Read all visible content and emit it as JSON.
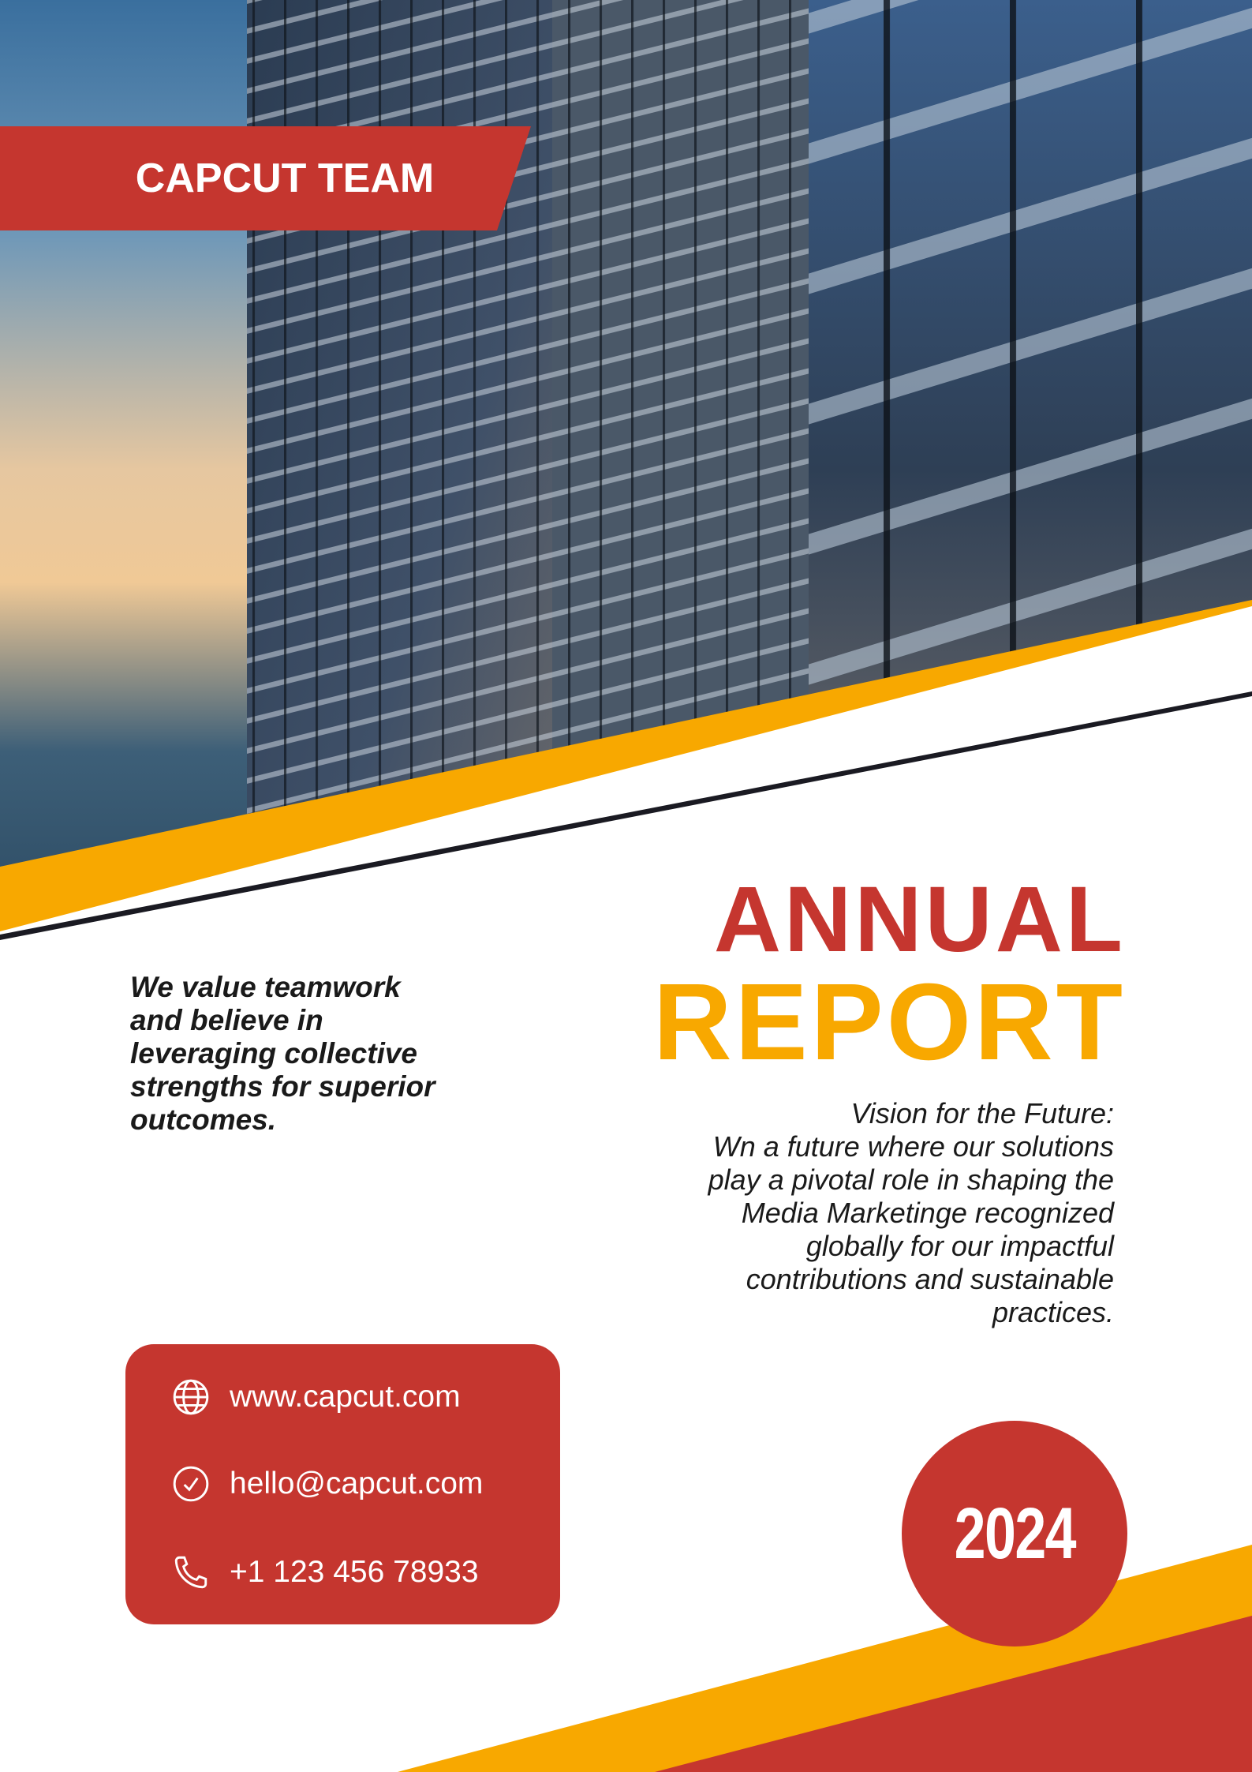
{
  "banner": {
    "label": "CAPCUT TEAM"
  },
  "title": {
    "line1": "ANNUAL",
    "line2": "REPORT"
  },
  "tagline": [
    "We value teamwork",
    "and believe in",
    "leveraging collective",
    "strengths for superior",
    "outcomes."
  ],
  "vision": [
    "Vision for the Future:",
    "Wn a future where our solutions",
    "play a pivotal role in shaping the",
    "Media Marketinge recognized",
    "globally for our impactful",
    "contributions and sustainable",
    "practices."
  ],
  "contact": {
    "website": {
      "icon": "globe-icon",
      "text": "www.capcut.com"
    },
    "email": {
      "icon": "check-circle-icon",
      "text": "hello@capcut.com"
    },
    "phone": {
      "icon": "phone-icon",
      "text": "+1 123 456 78933"
    }
  },
  "year": "2024",
  "colors": {
    "red": "#C5362F",
    "yellow": "#F8A800",
    "text": "#1a1a1a"
  }
}
